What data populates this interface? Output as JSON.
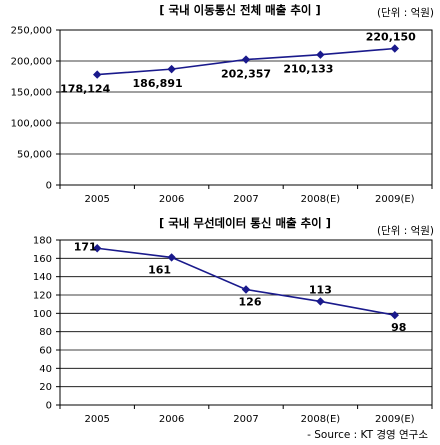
{
  "chart_data": [
    {
      "type": "line",
      "title": "[ 국내 이동통신 전체 매출 추이 ]",
      "unit_label": "(단위 : 억원)",
      "categories": [
        "2005",
        "2006",
        "2007",
        "2008(E)",
        "2009(E)"
      ],
      "values": [
        178124,
        186891,
        202357,
        210133,
        220150
      ],
      "data_labels": [
        "178,124",
        "186,891",
        "202,357",
        "210,133",
        "220,150"
      ],
      "y_ticks": [
        "0",
        "50,000",
        "100,000",
        "150,000",
        "200,000",
        "250,000"
      ],
      "ylim": [
        0,
        250000
      ],
      "grid": true,
      "line_color": "#1a1a8c"
    },
    {
      "type": "line",
      "title": "[ 국내 무선데이터 통신 매출 추이 ]",
      "unit_label": "(단위 : 억원)",
      "categories": [
        "2005",
        "2006",
        "2007",
        "2008(E)",
        "2009(E)"
      ],
      "values": [
        171,
        161,
        126,
        113,
        98
      ],
      "data_labels": [
        "171",
        "161",
        "126",
        "113",
        "98"
      ],
      "y_ticks": [
        "0",
        "20",
        "40",
        "60",
        "80",
        "100",
        "120",
        "140",
        "160",
        "180"
      ],
      "ylim": [
        0,
        180
      ],
      "grid": true,
      "line_color": "#1a1a8c"
    }
  ],
  "source": "- Source : KT 경영 연구소"
}
